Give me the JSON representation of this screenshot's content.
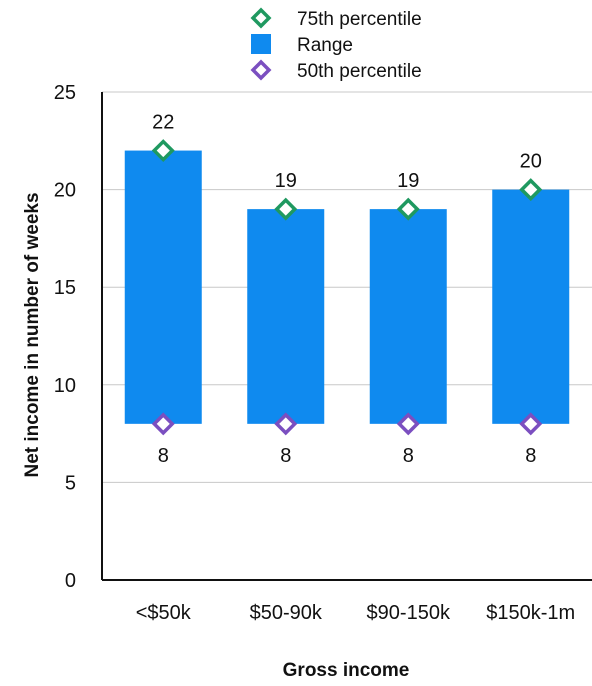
{
  "chart_data": {
    "type": "bar",
    "title": "",
    "xlabel": "Gross income",
    "ylabel": "Net income in number of weeks",
    "categories": [
      "<$50k",
      "$50-90k",
      "$90-150k",
      "$150k-1m"
    ],
    "ylim": [
      0,
      25
    ],
    "yticks": [
      0,
      5,
      10,
      15,
      20,
      25
    ],
    "grid": true,
    "legend_position": "top",
    "series": [
      {
        "name": "Range",
        "kind": "floating-bar",
        "low": [
          8,
          8,
          8,
          8
        ],
        "high": [
          22,
          19,
          19,
          20
        ],
        "color": "#0f8aef"
      },
      {
        "name": "75th percentile",
        "kind": "marker",
        "marker": "diamond",
        "values": [
          22,
          19,
          19,
          20
        ],
        "color": "#1f9960"
      },
      {
        "name": "50th percentile",
        "kind": "marker",
        "marker": "diamond",
        "values": [
          8,
          8,
          8,
          8
        ],
        "color": "#7b4fc0"
      }
    ],
    "data_labels": {
      "top": [
        "22",
        "19",
        "19",
        "20"
      ],
      "bottom": [
        "8",
        "8",
        "8",
        "8"
      ]
    },
    "legend": [
      {
        "label": "75th percentile",
        "symbol": "diamond",
        "color": "#1f9960"
      },
      {
        "label": "Range",
        "symbol": "square",
        "color": "#0f8aef"
      },
      {
        "label": "50th percentile",
        "symbol": "diamond",
        "color": "#7b4fc0"
      }
    ]
  }
}
